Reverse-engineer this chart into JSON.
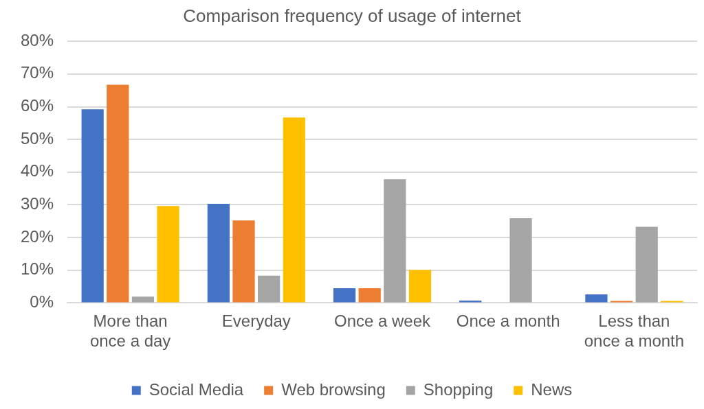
{
  "chart_data": {
    "type": "bar",
    "title": "Comparison frequency of usage of internet",
    "categories": [
      "More than once a day",
      "Everyday",
      "Once a week",
      "Once a month",
      "Less than once a month"
    ],
    "series": [
      {
        "name": "Social Media",
        "color": "#4472c4",
        "values": [
          59.2,
          30.3,
          4.5,
          0.7,
          2.6
        ]
      },
      {
        "name": "Web browsing",
        "color": "#ed7d31",
        "values": [
          66.7,
          25.2,
          4.5,
          0,
          0.6
        ]
      },
      {
        "name": "Shopping",
        "color": "#a5a5a5",
        "values": [
          1.9,
          8.3,
          37.8,
          25.9,
          23.3
        ]
      },
      {
        "name": "News",
        "color": "#ffc000",
        "values": [
          29.6,
          56.7,
          10.1,
          0,
          0.6
        ]
      }
    ],
    "ylim": [
      0,
      80
    ],
    "yticks": [
      {
        "value": 0,
        "label": "0%"
      },
      {
        "value": 10,
        "label": "10%"
      },
      {
        "value": 20,
        "label": "20%"
      },
      {
        "value": 30,
        "label": "30%"
      },
      {
        "value": 40,
        "label": "40%"
      },
      {
        "value": 50,
        "label": "50%"
      },
      {
        "value": 60,
        "label": "60%"
      },
      {
        "value": 70,
        "label": "70%"
      },
      {
        "value": 80,
        "label": "80%"
      }
    ],
    "grid": "y",
    "legend": "bottom"
  }
}
